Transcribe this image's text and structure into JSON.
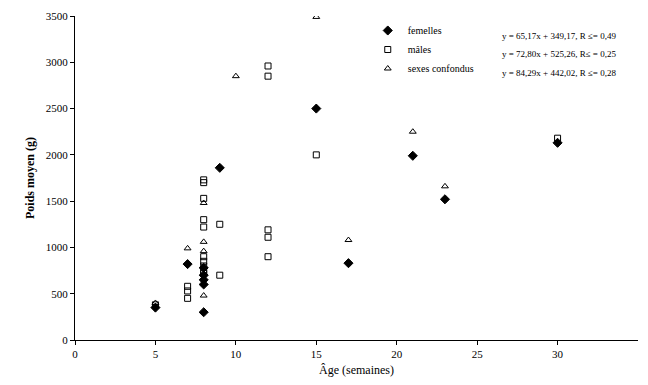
{
  "chart_data": {
    "type": "scatter",
    "x_label": "Âge (semaines)",
    "y_label": "Poids moyen (g)",
    "xlim": [
      0,
      35
    ],
    "xticks": [
      0,
      5,
      10,
      15,
      20,
      25,
      30
    ],
    "ylim": [
      0,
      3500
    ],
    "yticks": [
      0,
      500,
      1000,
      1500,
      2000,
      2500,
      3000,
      3500
    ],
    "grid": false,
    "legend": "top right",
    "series": [
      {
        "name": "femelles",
        "color": "#000000",
        "marker": "diamond",
        "x": [
          5,
          7,
          8,
          8,
          8,
          8,
          8,
          9,
          15,
          17,
          21,
          23,
          30
        ],
        "values": [
          350,
          820,
          300,
          600,
          650,
          700,
          780,
          1860,
          2500,
          830,
          1990,
          1520,
          2130
        ]
      },
      {
        "name": "mâles",
        "color": "#000000",
        "marker": "square-open",
        "x": [
          5,
          7,
          7,
          7,
          8,
          8,
          8,
          8,
          8,
          8,
          8,
          8,
          8,
          8,
          9,
          9,
          12,
          12,
          12,
          12,
          12,
          15,
          30
        ],
        "values": [
          380,
          450,
          530,
          580,
          1700,
          1730,
          1530,
          1300,
          1220,
          900,
          850,
          800,
          750,
          720,
          1250,
          700,
          2960,
          2850,
          1190,
          1110,
          900,
          2000,
          2180
        ]
      },
      {
        "name": "sexes confondus",
        "color": "#000000",
        "marker": "triangle-up-open",
        "x": [
          5,
          7,
          8,
          8,
          8,
          8,
          10,
          15,
          17,
          21,
          23
        ],
        "values": [
          400,
          990,
          1480,
          1060,
          960,
          480,
          2850,
          3490,
          1080,
          2250,
          1660
        ]
      }
    ],
    "annotations": [
      "y = 65,17x + 349,17, R ≤= 0,49",
      "y = 72,80x + 525,26, R≤ = 0,25",
      "y = 84,29x + 442,02, R ≤= 0,28"
    ]
  }
}
